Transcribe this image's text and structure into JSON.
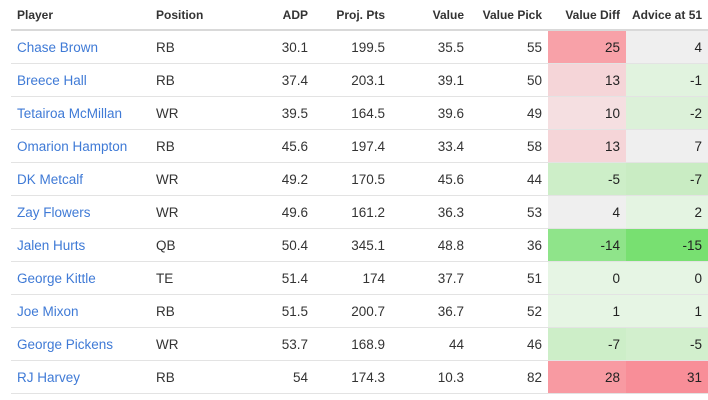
{
  "columns": [
    "Player",
    "Position",
    "ADP",
    "Proj. Pts",
    "Value",
    "Value Pick",
    "Value Diff",
    "Advice at 51"
  ],
  "rows": [
    {
      "player": "Chase Brown",
      "position": "RB",
      "adp": "30.1",
      "proj": "199.5",
      "value": "35.5",
      "value_pick": "55",
      "value_diff": "25",
      "advice": "4",
      "diff_color": "#f8a1a8",
      "advice_color": "#efefef"
    },
    {
      "player": "Breece Hall",
      "position": "RB",
      "adp": "37.4",
      "proj": "203.1",
      "value": "39.1",
      "value_pick": "50",
      "value_diff": "13",
      "advice": "-1",
      "diff_color": "#f5d5d8",
      "advice_color": "#e1f3df"
    },
    {
      "player": "Tetairoa McMillan",
      "position": "WR",
      "adp": "39.5",
      "proj": "164.5",
      "value": "39.6",
      "value_pick": "49",
      "value_diff": "10",
      "advice": "-2",
      "diff_color": "#f5dfe1",
      "advice_color": "#dcf1d9"
    },
    {
      "player": "Omarion Hampton",
      "position": "RB",
      "adp": "45.6",
      "proj": "197.4",
      "value": "33.4",
      "value_pick": "58",
      "value_diff": "13",
      "advice": "7",
      "diff_color": "#f5d5d8",
      "advice_color": "#efefef"
    },
    {
      "player": "DK Metcalf",
      "position": "WR",
      "adp": "49.2",
      "proj": "170.5",
      "value": "45.6",
      "value_pick": "44",
      "value_diff": "-5",
      "advice": "-7",
      "diff_color": "#cdeec8",
      "advice_color": "#c9ecc3"
    },
    {
      "player": "Zay Flowers",
      "position": "WR",
      "adp": "49.6",
      "proj": "161.2",
      "value": "36.3",
      "value_pick": "53",
      "value_diff": "4",
      "advice": "2",
      "diff_color": "#efefef",
      "advice_color": "#e4f4e2"
    },
    {
      "player": "Jalen Hurts",
      "position": "QB",
      "adp": "50.4",
      "proj": "345.1",
      "value": "48.8",
      "value_pick": "36",
      "value_diff": "-14",
      "advice": "-15",
      "diff_color": "#8fe48a",
      "advice_color": "#78e071"
    },
    {
      "player": "George Kittle",
      "position": "TE",
      "adp": "51.4",
      "proj": "174",
      "value": "37.7",
      "value_pick": "51",
      "value_diff": "0",
      "advice": "0",
      "diff_color": "#e6f5e4",
      "advice_color": "#e6f5e4"
    },
    {
      "player": "Joe Mixon",
      "position": "RB",
      "adp": "51.5",
      "proj": "200.7",
      "value": "36.7",
      "value_pick": "52",
      "value_diff": "1",
      "advice": "1",
      "diff_color": "#e6f5e4",
      "advice_color": "#e6f5e4"
    },
    {
      "player": "George Pickens",
      "position": "WR",
      "adp": "53.7",
      "proj": "168.9",
      "value": "44",
      "value_pick": "46",
      "value_diff": "-7",
      "advice": "-5",
      "diff_color": "#cdeec8",
      "advice_color": "#d2efcd"
    },
    {
      "player": "RJ Harvey",
      "position": "RB",
      "adp": "54",
      "proj": "174.3",
      "value": "10.3",
      "value_pick": "82",
      "value_diff": "28",
      "advice": "31",
      "diff_color": "#f89aa2",
      "advice_color": "#f88e98"
    }
  ]
}
